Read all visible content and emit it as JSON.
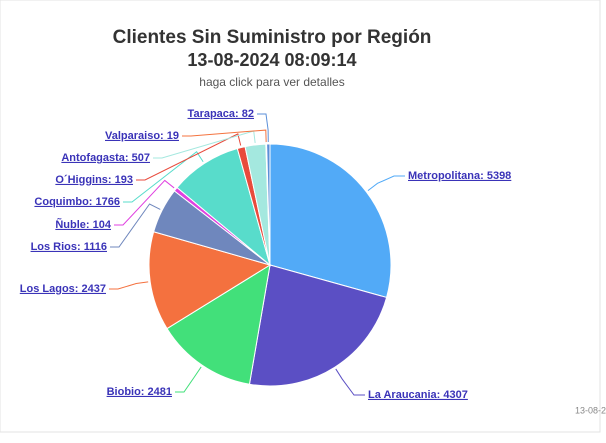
{
  "chart_data": {
    "type": "pie",
    "title": "Clientes Sin Suministro por Región",
    "subtitle": "13-08-2024 08:09:14",
    "caption": "haga click para ver detalles",
    "credit": "13-08-2",
    "values": [
      5398,
      4307,
      2481,
      2437,
      1116,
      104,
      1766,
      193,
      507,
      19,
      82
    ],
    "value_labels": [
      "Metropolitana: 5398",
      "La Araucania: 4307",
      "Biobio: 2481",
      "Los Lagos: 2437",
      "Los Rios: 1116",
      "Ñuble: 104",
      "Coquimbo: 1766",
      "O´Higgins: 193",
      "Antofagasta: 507",
      "Valparaiso: 19",
      "Tarapaca: 82"
    ],
    "colors": [
      "#52aaf7",
      "#5b4fc4",
      "#42e07a",
      "#f4713f",
      "#6f87bd",
      "#e040e0",
      "#58dccb",
      "#e84a3c",
      "#a4e8df",
      "#f4733f",
      "#5b8fd8"
    ]
  }
}
